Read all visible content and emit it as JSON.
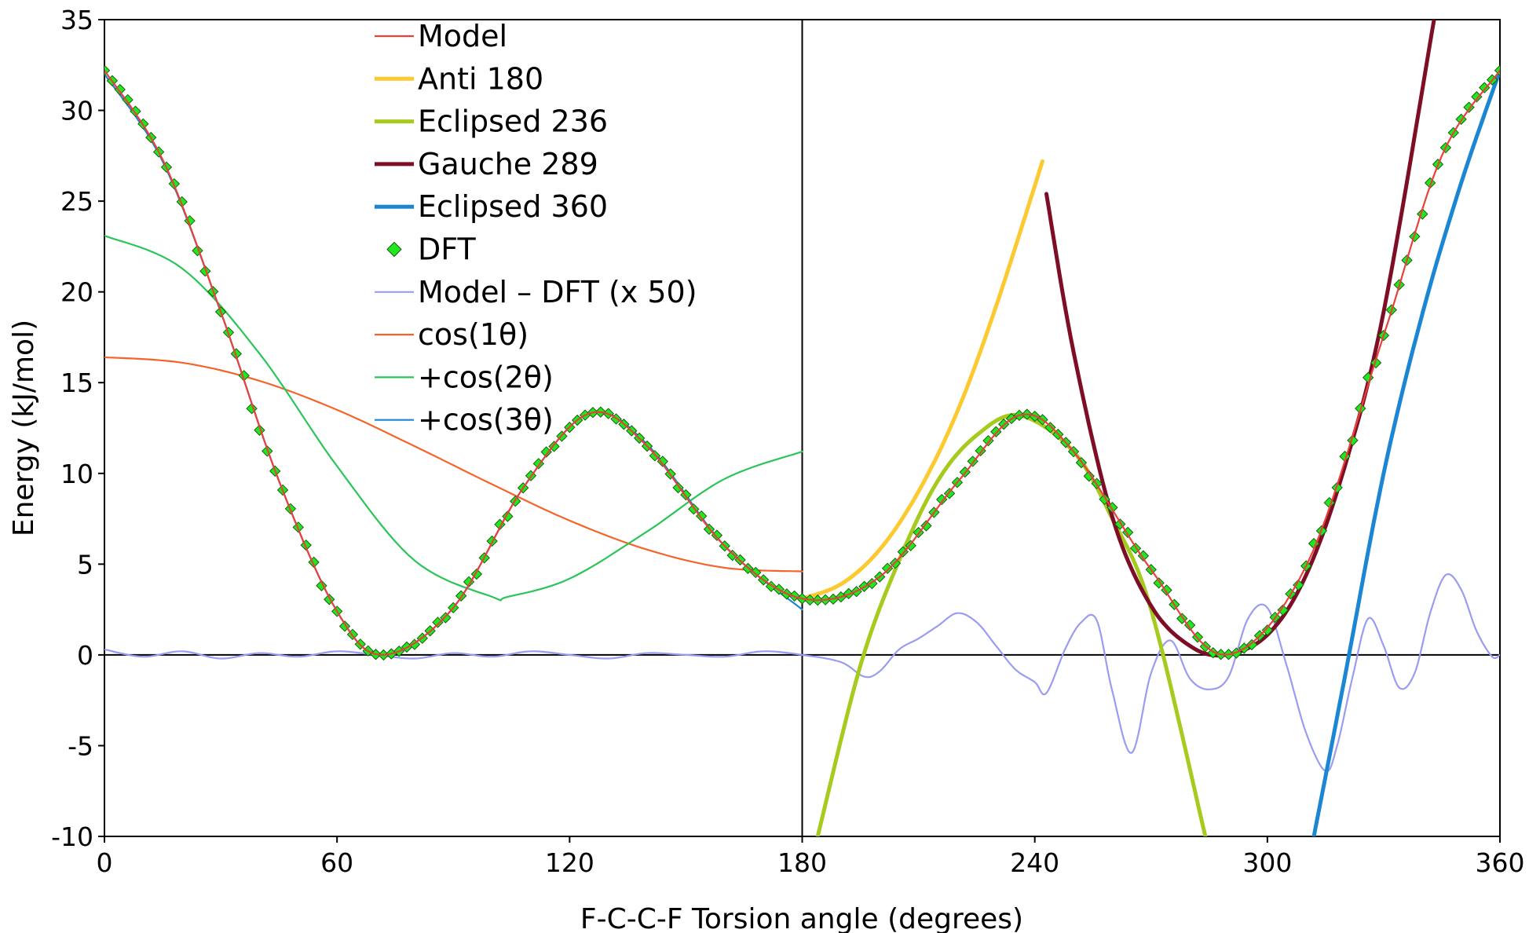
{
  "chart_data": {
    "type": "line",
    "xlabel": "F-C-C-F Torsion angle (degrees)",
    "ylabel": "Energy (kJ/mol)",
    "xlim": [
      0,
      360
    ],
    "ylim": [
      -10,
      35
    ],
    "xticks": [
      0,
      60,
      120,
      180,
      240,
      300,
      360
    ],
    "yticks": [
      -10,
      -5,
      0,
      5,
      10,
      15,
      20,
      25,
      30,
      35
    ],
    "grid": false,
    "legend_position": "top-left-center",
    "reference_lines": {
      "vertical_x": 180,
      "horizontal_y": 0
    },
    "series": [
      {
        "name": "Model",
        "color": "#e8413a",
        "style": "thin-line",
        "domain": [
          0,
          360
        ],
        "x": [
          0,
          15,
          30,
          45,
          60,
          72,
          90,
          108,
          125,
          140,
          160,
          180,
          200,
          220,
          236,
          250,
          270,
          289,
          310,
          330,
          345,
          360
        ],
        "y": [
          32.2,
          27.3,
          18.9,
          9.6,
          2.4,
          0.0,
          2.6,
          9.2,
          13.3,
          11.5,
          6.0,
          3.1,
          4.3,
          9.5,
          13.2,
          11.2,
          4.7,
          0.0,
          4.9,
          17.6,
          27.5,
          32.2
        ]
      },
      {
        "name": "Anti 180",
        "color": "#fcc930",
        "style": "thick-line",
        "domain": [
          180,
          242
        ],
        "x": [
          180,
          190,
          200,
          210,
          220,
          230,
          242
        ],
        "y": [
          3.1,
          3.9,
          5.8,
          9.0,
          13.4,
          19.2,
          27.2
        ]
      },
      {
        "name": "Eclipsed 236",
        "color": "#a6cb1e",
        "style": "thick-line",
        "domain": [
          184,
          284
        ],
        "x": [
          184,
          195,
          205,
          215,
          225,
          236,
          250,
          260,
          270,
          284
        ],
        "y": [
          -10.0,
          -0.6,
          5.2,
          9.6,
          12.1,
          13.2,
          11.2,
          7.5,
          2.5,
          -10.0
        ]
      },
      {
        "name": "Gauche 289",
        "color": "#7d0e25",
        "style": "thick-line",
        "domain": [
          243,
          343
        ],
        "x": [
          243,
          250,
          260,
          270,
          280,
          289,
          300,
          310,
          320,
          330,
          343
        ],
        "y": [
          25.4,
          16.7,
          7.6,
          2.7,
          0.5,
          0.0,
          1.1,
          4.4,
          10.4,
          18.9,
          35.0
        ]
      },
      {
        "name": "Eclipsed 360",
        "color": "#1b86d3",
        "style": "thick-line",
        "domain": [
          312,
          360
        ],
        "x": [
          312,
          320,
          330,
          340,
          350,
          360
        ],
        "y": [
          -10.0,
          -1.2,
          10.0,
          18.8,
          26.0,
          32.2
        ]
      },
      {
        "name": "DFT",
        "color": "#1ee81e",
        "style": "diamond-markers",
        "domain": [
          0,
          360
        ],
        "x": [
          0,
          15,
          30,
          45,
          60,
          72,
          90,
          108,
          125,
          140,
          160,
          180,
          200,
          220,
          236,
          250,
          270,
          289,
          310,
          330,
          345,
          360
        ],
        "y": [
          32.2,
          27.3,
          18.9,
          9.6,
          2.4,
          0.0,
          2.6,
          9.2,
          13.3,
          11.5,
          6.0,
          3.1,
          4.3,
          9.5,
          13.2,
          11.2,
          4.7,
          0.0,
          4.9,
          17.6,
          27.5,
          32.2
        ]
      },
      {
        "name": "Model – DFT (x 50)",
        "color": "#9a9cf2",
        "style": "thin-line",
        "domain": [
          0,
          360
        ],
        "x": [
          0,
          10,
          20,
          30,
          40,
          50,
          60,
          70,
          80,
          90,
          100,
          110,
          120,
          130,
          140,
          150,
          160,
          170,
          180,
          190,
          196,
          200,
          205,
          210,
          215,
          220,
          225,
          230,
          235,
          240,
          243,
          248,
          252,
          256,
          260,
          265,
          270,
          275,
          280,
          285,
          290,
          295,
          300,
          305,
          310,
          315,
          318,
          322,
          326,
          330,
          334,
          338,
          342,
          346,
          350,
          354,
          358,
          360
        ],
        "y": [
          0.3,
          -0.1,
          0.2,
          -0.2,
          0.1,
          -0.1,
          0.2,
          0.0,
          -0.2,
          0.1,
          -0.1,
          0.2,
          0.0,
          -0.2,
          0.1,
          0.0,
          -0.1,
          0.2,
          0.0,
          -0.4,
          -1.2,
          -0.9,
          0.3,
          0.9,
          1.6,
          2.3,
          1.8,
          0.5,
          -0.8,
          -1.5,
          -2.1,
          0.4,
          1.8,
          1.9,
          -2.0,
          -5.4,
          -1.0,
          0.8,
          -1.3,
          -1.9,
          -1.2,
          2.0,
          2.6,
          -0.6,
          -4.3,
          -6.4,
          -5.0,
          -1.2,
          2.0,
          0.5,
          -1.8,
          -1.0,
          2.3,
          4.4,
          3.6,
          1.3,
          -0.1,
          0.0
        ]
      },
      {
        "name": "cos(1θ)",
        "color": "#f5642a",
        "style": "thin-line",
        "domain": [
          0,
          180
        ],
        "x": [
          0,
          20,
          40,
          60,
          80,
          100,
          120,
          140,
          160,
          180
        ],
        "y": [
          16.4,
          16.1,
          15.1,
          13.5,
          11.5,
          9.4,
          7.4,
          5.8,
          4.8,
          4.6
        ]
      },
      {
        "name": "+cos(2θ)",
        "color": "#2ac559",
        "style": "thin-line",
        "domain": [
          0,
          180
        ],
        "x": [
          0,
          20,
          40,
          60,
          80,
          100,
          104,
          120,
          140,
          160,
          180
        ],
        "y": [
          23.1,
          21.3,
          16.6,
          10.4,
          5.2,
          3.2,
          3.2,
          4.2,
          6.8,
          9.7,
          11.2
        ]
      },
      {
        "name": "+cos(3θ)",
        "color": "#1b86d3",
        "style": "thin-line",
        "domain": [
          0,
          180
        ],
        "x": [
          0,
          15,
          30,
          45,
          60,
          72,
          90,
          108,
          125,
          140,
          160,
          180
        ],
        "y": [
          32.0,
          27.2,
          18.9,
          9.6,
          2.4,
          0.0,
          2.6,
          9.2,
          13.3,
          11.6,
          6.0,
          2.5
        ]
      }
    ]
  }
}
